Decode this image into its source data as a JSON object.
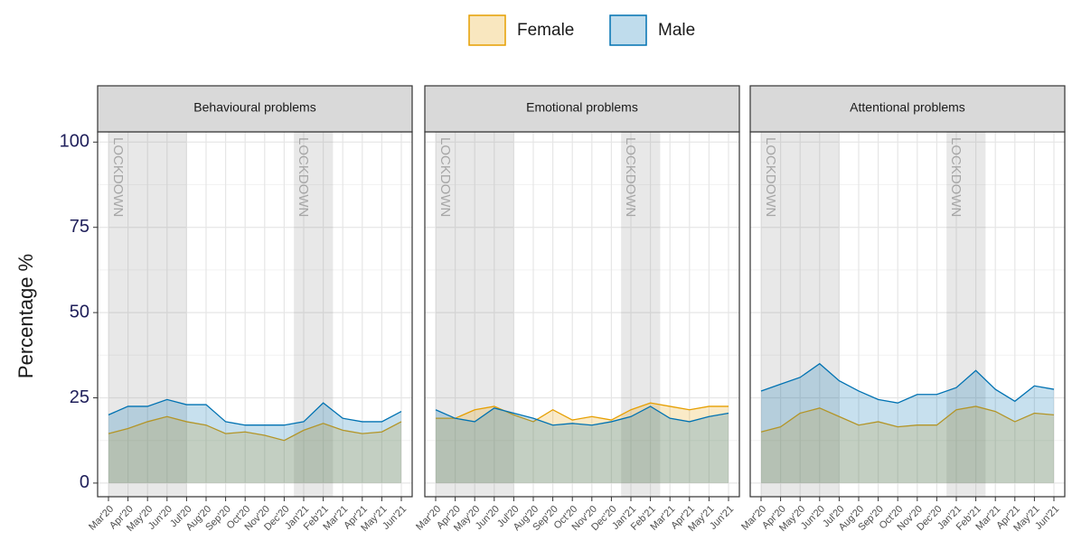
{
  "chart_data": {
    "type": "area",
    "y_label": "Percentage %",
    "categories": [
      "Mar'20",
      "Apr'20",
      "May'20",
      "Jun'20",
      "Jul'20",
      "Aug'20",
      "Sep'20",
      "Oct'20",
      "Nov'20",
      "Dec'20",
      "Jan'21",
      "Feb'21",
      "Mar'21",
      "Apr'21",
      "May'21",
      "Jun'21"
    ],
    "ylim": [
      -4,
      103
    ],
    "yticks": [
      0,
      25,
      50,
      75,
      100
    ],
    "grid": true,
    "legend": "top",
    "shaded_regions": [
      {
        "start": 0,
        "end": 4,
        "label": "LOCKDOWN"
      },
      {
        "start": 9.5,
        "end": 11.5,
        "label": "LOCKDOWN"
      }
    ],
    "facets": [
      {
        "title": "Behavioural problems",
        "series": [
          {
            "name": "Female",
            "color": "#E69F00",
            "values": [
              14.5,
              16,
              18,
              19.5,
              18,
              17,
              14.5,
              15,
              14,
              12.5,
              15.5,
              17.5,
              15.5,
              14.5,
              15,
              18
            ]
          },
          {
            "name": "Male",
            "color": "#0072B2",
            "values": [
              20,
              22.5,
              22.5,
              24.5,
              23,
              23,
              18,
              17,
              17,
              17,
              18,
              23.5,
              19,
              18,
              18,
              21
            ]
          }
        ]
      },
      {
        "title": "Emotional problems",
        "series": [
          {
            "name": "Female",
            "color": "#E69F00",
            "values": [
              19,
              19,
              21.5,
              22.5,
              20,
              18,
              21.5,
              18.5,
              19.5,
              18.5,
              21.5,
              23.5,
              22.5,
              21.5,
              22.5,
              22.5
            ]
          },
          {
            "name": "Male",
            "color": "#0072B2",
            "values": [
              21.5,
              19,
              18,
              22,
              20.5,
              19,
              17,
              17.5,
              17,
              18,
              19.5,
              22.5,
              19,
              18,
              19.5,
              20.5
            ]
          }
        ]
      },
      {
        "title": "Attentional problems",
        "series": [
          {
            "name": "Female",
            "color": "#E69F00",
            "values": [
              15,
              16.5,
              20.5,
              22,
              19.5,
              17,
              18,
              16.5,
              17,
              17,
              21.5,
              22.5,
              21,
              18,
              20.5,
              20
            ]
          },
          {
            "name": "Male",
            "color": "#0072B2",
            "values": [
              27,
              29,
              31,
              35,
              30,
              27,
              24.5,
              23.5,
              26,
              26,
              28,
              33,
              27.5,
              24,
              28.5,
              27.5
            ]
          }
        ]
      }
    ]
  }
}
